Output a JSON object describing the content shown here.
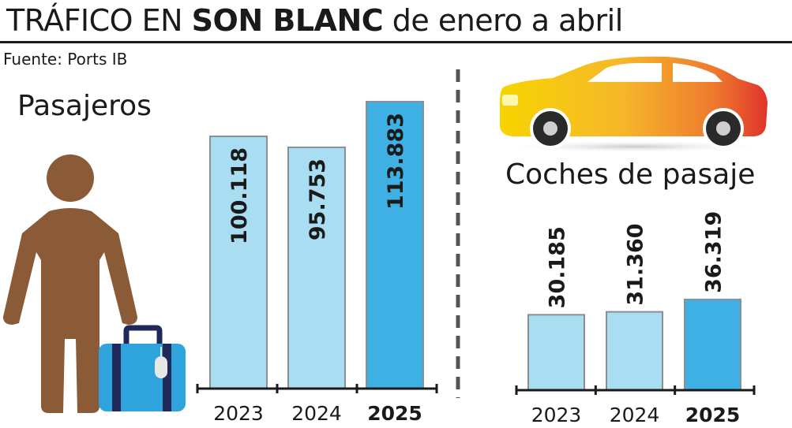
{
  "header": {
    "title_part1": "TRÁFICO EN ",
    "title_bold": "SON BLANC",
    "title_part2": " de enero a abril",
    "source": "Fuente: Ports IB"
  },
  "colors": {
    "bar_light": "#a9ddf2",
    "bar_highlight": "#3fb0e3",
    "bar_stroke": "#8a8f94",
    "person": "#8b5a36",
    "suitcase": "#2fa3dc",
    "suitcase_strap": "#1f2a5a",
    "divider": "#555555"
  },
  "icons": {
    "person": "person-icon",
    "suitcase": "suitcase-icon",
    "car": "car-icon"
  },
  "chart_data": [
    {
      "type": "bar",
      "title": "Pasajeros",
      "categories": [
        "2023",
        "2024",
        "2025"
      ],
      "highlight": "2025",
      "values": [
        100118,
        95753,
        113883
      ],
      "value_labels": [
        "100.118",
        "95.753",
        "113.883"
      ],
      "ylim": [
        0,
        117000
      ],
      "grid": false,
      "legend": "none"
    },
    {
      "type": "bar",
      "title": "Coches de pasaje",
      "categories": [
        "2023",
        "2024",
        "2025"
      ],
      "highlight": "2025",
      "values": [
        30185,
        31360,
        36319
      ],
      "value_labels": [
        "30.185",
        "31.360",
        "36.319"
      ],
      "ylim": [
        0,
        130000
      ],
      "grid": false,
      "legend": "none"
    }
  ]
}
